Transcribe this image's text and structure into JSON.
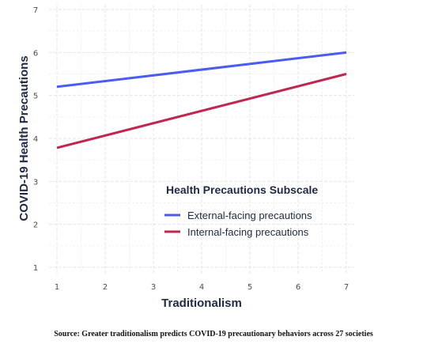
{
  "chart_data": {
    "type": "line",
    "xlabel": "Traditionalism",
    "ylabel": "COVID-19 Health Precautions",
    "xlim": [
      1,
      7
    ],
    "ylim": [
      1,
      7
    ],
    "x_ticks": [
      1,
      2,
      3,
      4,
      5,
      6,
      7
    ],
    "y_ticks": [
      1,
      2,
      3,
      4,
      5,
      6,
      7
    ],
    "grid": true,
    "legend_title": "Health Precautions Subscale",
    "legend_position": "bottom-right",
    "series": [
      {
        "name": "External-facing precautions",
        "color": "#4a5cf2",
        "x": [
          1,
          7
        ],
        "y": [
          5.2,
          6.0
        ]
      },
      {
        "name": "Internal-facing precautions",
        "color": "#c0264f",
        "x": [
          1,
          7
        ],
        "y": [
          3.78,
          5.5
        ]
      }
    ]
  },
  "caption": "Source: Greater traditionalism predicts COVID-19 precautionary behaviors across 27 societies"
}
